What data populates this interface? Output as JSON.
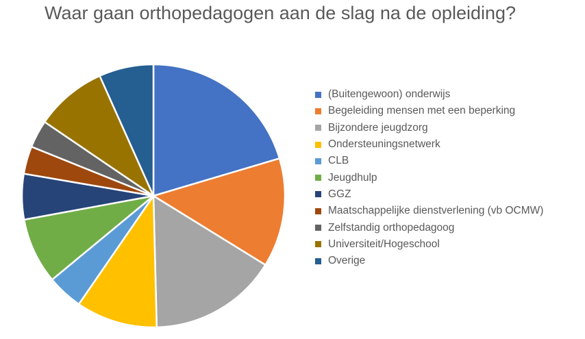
{
  "chart_data": {
    "type": "pie",
    "title": "Waar gaan orthopedagogen aan de slag na de opleiding?",
    "legend_position": "right",
    "slices": [
      {
        "label": "(Buitengewoon) onderwijs",
        "value": 20.4,
        "color": "#4472C4"
      },
      {
        "label": "Begeleiding mensen met een beperking",
        "value": 13.4,
        "color": "#ED7D31"
      },
      {
        "label": "Bijzondere jeugdzorg",
        "value": 15.8,
        "color": "#A5A5A5"
      },
      {
        "label": "Ondersteuningsnetwerk",
        "value": 10.0,
        "color": "#FFC000"
      },
      {
        "label": "CLB",
        "value": 4.4,
        "color": "#5B9BD5"
      },
      {
        "label": "Jeugdhulp",
        "value": 8.1,
        "color": "#70AD47"
      },
      {
        "label": "GGZ",
        "value": 5.6,
        "color": "#264478"
      },
      {
        "label": "Maatschappelijke dienstverlening (vb OCMW)",
        "value": 3.4,
        "color": "#9E480E"
      },
      {
        "label": "Zelfstandig orthopedagoog",
        "value": 3.4,
        "color": "#636363"
      },
      {
        "label": "Universiteit/Hogeschool",
        "value": 8.8,
        "color": "#997300"
      },
      {
        "label": "Overige",
        "value": 6.7,
        "color": "#255E91"
      }
    ]
  }
}
